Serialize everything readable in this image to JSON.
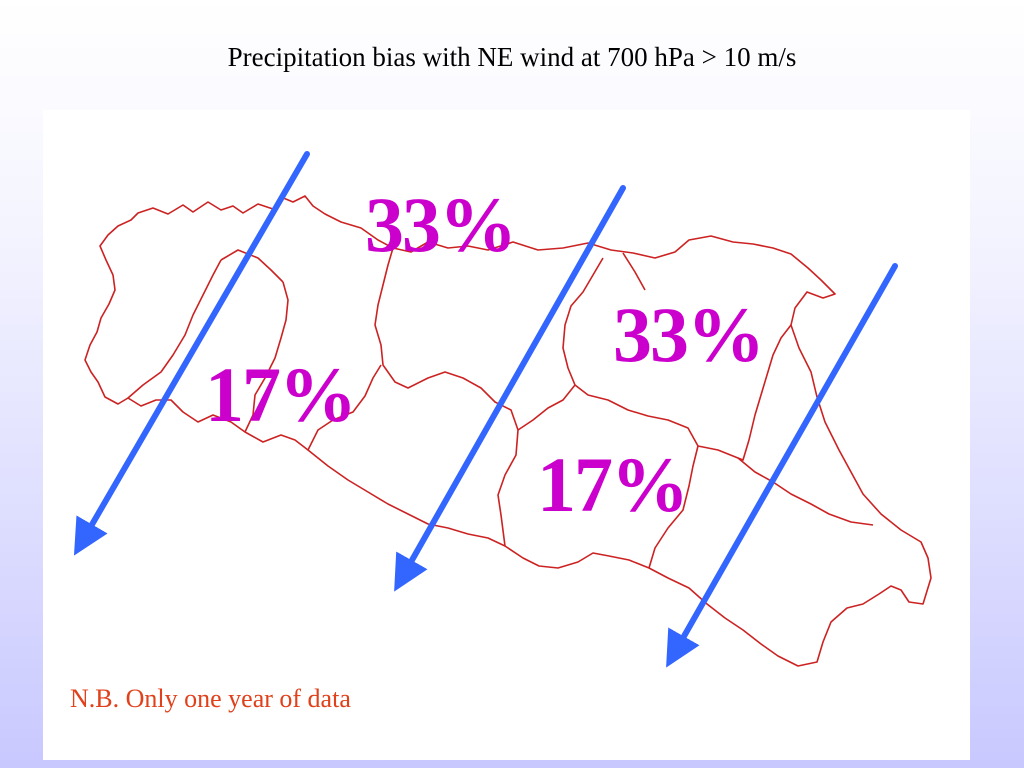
{
  "title": "Precipitation bias with NE wind at 700 hPa > 10 m/s",
  "regions": [
    {
      "label": "33%"
    },
    {
      "label": "33%"
    },
    {
      "label": "17%"
    },
    {
      "label": "17%"
    }
  ],
  "wind_direction": "NE",
  "note": "N.B. Only one year of data",
  "colors": {
    "label": "#cc00cc",
    "arrow": "#3366ff",
    "border": "#cc2222",
    "note": "#e0401a"
  }
}
